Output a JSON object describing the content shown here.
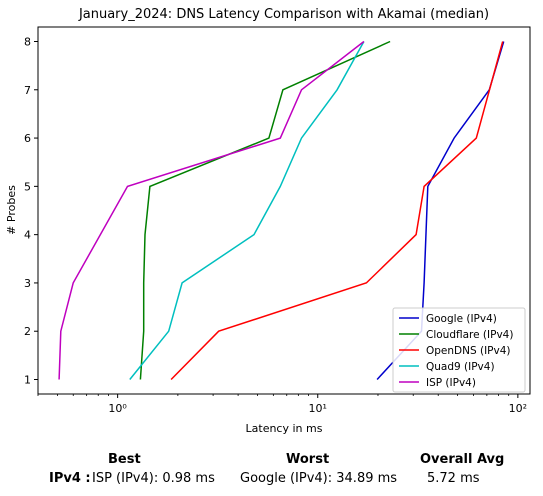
{
  "chart_data": {
    "type": "line",
    "title": "January_2024: DNS Latency Comparison with Akamai (median)",
    "xlabel": "Latency in ms",
    "ylabel": "# Probes",
    "xscale": "log",
    "xlim": [
      0.4,
      115
    ],
    "ylim": [
      0.7,
      8.3
    ],
    "xticks": [
      1,
      10,
      100
    ],
    "xtick_labels": [
      "10⁰",
      "10¹",
      "10²"
    ],
    "yticks": [
      1,
      2,
      3,
      4,
      5,
      6,
      7,
      8
    ],
    "ytick_labels": [
      "1",
      "2",
      "3",
      "4",
      "5",
      "6",
      "7",
      "8"
    ],
    "grid": false,
    "legend_position": "lower-right",
    "series": [
      {
        "name": "Google (IPv4)",
        "color": "#0000cc",
        "x": [
          19.8,
          33.0,
          34.0,
          35.5,
          48.0,
          72.0,
          85.0
        ],
        "y": [
          1,
          2,
          3,
          5,
          6,
          7,
          8
        ]
      },
      {
        "name": "Cloudflare (IPv4)",
        "color": "#008000",
        "x": [
          1.3,
          1.35,
          1.35,
          1.37,
          1.45,
          5.7,
          6.7,
          23.0
        ],
        "y": [
          1,
          2,
          3,
          4,
          5,
          6,
          7,
          8
        ]
      },
      {
        "name": "OpenDNS (IPv4)",
        "color": "#ff0000",
        "x": [
          1.85,
          3.2,
          17.5,
          31.0,
          34.0,
          62.0,
          84.0
        ],
        "y": [
          1,
          2,
          3,
          4,
          5,
          6,
          8
        ]
      },
      {
        "name": "Quad9 (IPv4)",
        "color": "#00bfbf",
        "x": [
          1.15,
          1.8,
          2.1,
          4.8,
          6.5,
          8.3,
          12.5,
          17.0
        ],
        "y": [
          1,
          2,
          3,
          4,
          5,
          6,
          7,
          8
        ]
      },
      {
        "name": "ISP (IPv4)",
        "color": "#bf00bf",
        "x": [
          0.51,
          0.52,
          0.6,
          1.12,
          6.5,
          8.3,
          17.0
        ],
        "y": [
          1,
          2,
          3,
          5,
          6,
          7,
          8
        ]
      }
    ]
  },
  "summary": {
    "best_header": "Best",
    "worst_header": "Worst",
    "avg_header": "Overall Avg",
    "row_label": "IPv4 :",
    "best_value": "ISP (IPv4): 0.98 ms",
    "worst_value": "Google (IPv4): 34.89 ms",
    "avg_value": "5.72 ms"
  }
}
